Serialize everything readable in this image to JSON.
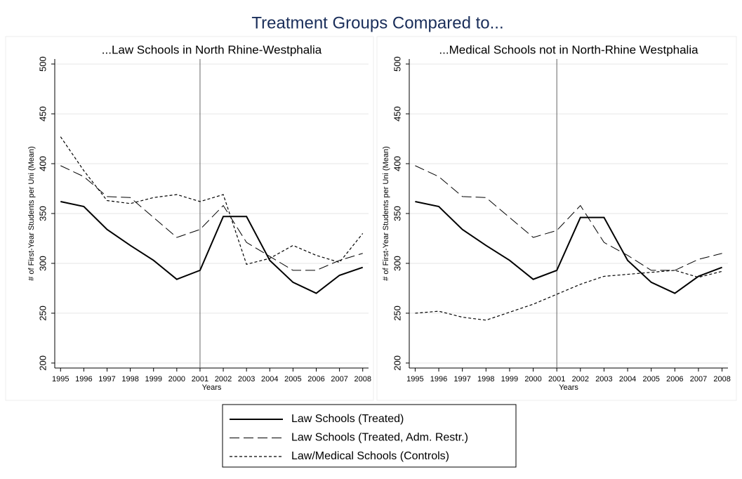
{
  "title": "Treatment Groups Compared to...",
  "legend": [
    "Law Schools (Treated)",
    "Law Schools (Treated, Adm. Restr.)",
    "Law/Medical Schools (Controls)"
  ],
  "chart_data": [
    {
      "type": "line",
      "title": "...Law Schools in North Rhine-Westphalia",
      "x": [
        1995,
        1996,
        1997,
        1998,
        1999,
        2000,
        2001,
        2002,
        2003,
        2004,
        2005,
        2006,
        2007,
        2008
      ],
      "xlim": [
        1994.75,
        2008.25
      ],
      "xlabel": "Years",
      "ylabel": "# of First-Year Students per Uni (Mean)",
      "ylim": [
        195,
        505
      ],
      "yticks": [
        200,
        250,
        300,
        350,
        400,
        450,
        500
      ],
      "grid": true,
      "vline": 2001,
      "series": [
        {
          "color": "#000000",
          "dash": "solid",
          "values": [
            362,
            357,
            334,
            318,
            303,
            284,
            293,
            347,
            347,
            303,
            281,
            270,
            288,
            296
          ]
        },
        {
          "color": "#000000",
          "dash": "long",
          "values": [
            398,
            387,
            367,
            366,
            346,
            326,
            334,
            358,
            321,
            307,
            293,
            293,
            303,
            310
          ]
        },
        {
          "color": "#000000",
          "dash": "short",
          "values": [
            427,
            393,
            363,
            360,
            366,
            369,
            362,
            369,
            299,
            305,
            318,
            308,
            301,
            330
          ]
        }
      ]
    },
    {
      "type": "line",
      "title": "...Medical Schools not in North-Rhine Westphalia",
      "x": [
        1995,
        1996,
        1997,
        1998,
        1999,
        2000,
        2001,
        2002,
        2003,
        2004,
        2005,
        2006,
        2007,
        2008
      ],
      "xlim": [
        1994.75,
        2008.25
      ],
      "xlabel": "Years",
      "ylabel": "# of First-Year Students per Uni (Mean)",
      "ylim": [
        195,
        505
      ],
      "yticks": [
        200,
        250,
        300,
        350,
        400,
        450,
        500
      ],
      "grid": true,
      "vline": 2001,
      "series": [
        {
          "color": "#000000",
          "dash": "solid",
          "values": [
            362,
            357,
            334,
            318,
            303,
            284,
            293,
            346,
            346,
            303,
            281,
            270,
            287,
            296
          ]
        },
        {
          "color": "#000000",
          "dash": "long",
          "values": [
            398,
            387,
            367,
            366,
            346,
            326,
            333,
            358,
            321,
            308,
            293,
            293,
            304,
            310
          ]
        },
        {
          "color": "#000000",
          "dash": "short",
          "values": [
            250,
            252,
            246,
            243,
            251,
            259,
            269,
            279,
            287,
            289,
            291,
            293,
            286,
            292
          ]
        }
      ]
    }
  ]
}
